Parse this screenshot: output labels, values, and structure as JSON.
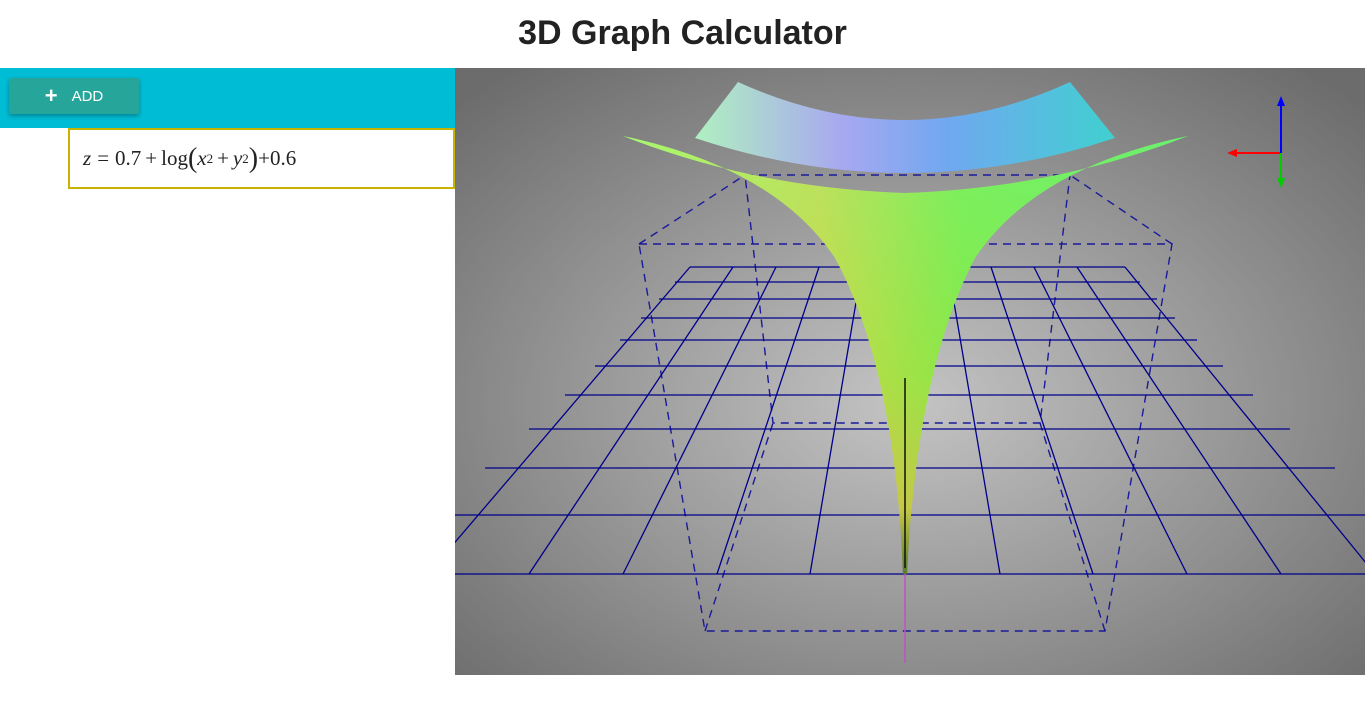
{
  "app": {
    "title": "3D Graph Calculator"
  },
  "toolbar": {
    "add_label": "ADD",
    "add_icon": "plus-icon",
    "color": "#00bcd4",
    "button_color": "#26a69a"
  },
  "equations": [
    {
      "lhs_var": "z",
      "eq": "=",
      "c1": "0.7",
      "plus1": "+",
      "func": "log",
      "x": "x",
      "exp_x": "2",
      "plus2": "+",
      "y": "y",
      "exp_y": "2",
      "tail": "+0.6"
    }
  ],
  "viewport": {
    "background": "radial gray gradient",
    "grid_color": "#00008b",
    "axis_helper": {
      "x_color": "#ff0000",
      "y_color": "#0000ff",
      "z_color": "#00cc00"
    }
  }
}
